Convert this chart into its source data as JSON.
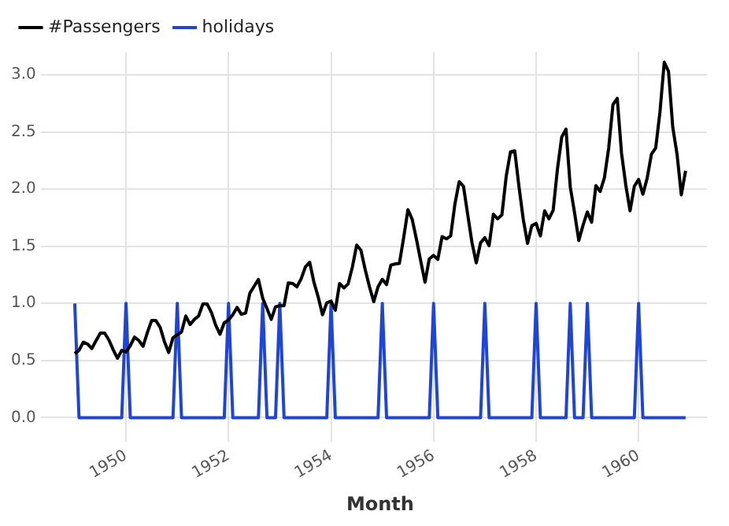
{
  "chart_data": {
    "type": "line",
    "xlabel": "Month",
    "x": [
      "1949-01",
      "1949-02",
      "1949-03",
      "1949-04",
      "1949-05",
      "1949-06",
      "1949-07",
      "1949-08",
      "1949-09",
      "1949-10",
      "1949-11",
      "1949-12",
      "1950-01",
      "1950-02",
      "1950-03",
      "1950-04",
      "1950-05",
      "1950-06",
      "1950-07",
      "1950-08",
      "1950-09",
      "1950-10",
      "1950-11",
      "1950-12",
      "1951-01",
      "1951-02",
      "1951-03",
      "1951-04",
      "1951-05",
      "1951-06",
      "1951-07",
      "1951-08",
      "1951-09",
      "1951-10",
      "1951-11",
      "1951-12",
      "1952-01",
      "1952-02",
      "1952-03",
      "1952-04",
      "1952-05",
      "1952-06",
      "1952-07",
      "1952-08",
      "1952-09",
      "1952-10",
      "1952-11",
      "1952-12",
      "1953-01",
      "1953-02",
      "1953-03",
      "1953-04",
      "1953-05",
      "1953-06",
      "1953-07",
      "1953-08",
      "1953-09",
      "1953-10",
      "1953-11",
      "1953-12",
      "1954-01",
      "1954-02",
      "1954-03",
      "1954-04",
      "1954-05",
      "1954-06",
      "1954-07",
      "1954-08",
      "1954-09",
      "1954-10",
      "1954-11",
      "1954-12",
      "1955-01",
      "1955-02",
      "1955-03",
      "1955-04",
      "1955-05",
      "1955-06",
      "1955-07",
      "1955-08",
      "1955-09",
      "1955-10",
      "1955-11",
      "1955-12",
      "1956-01",
      "1956-02",
      "1956-03",
      "1956-04",
      "1956-05",
      "1956-06",
      "1956-07",
      "1956-08",
      "1956-09",
      "1956-10",
      "1956-11",
      "1956-12",
      "1957-01",
      "1957-02",
      "1957-03",
      "1957-04",
      "1957-05",
      "1957-06",
      "1957-07",
      "1957-08",
      "1957-09",
      "1957-10",
      "1957-11",
      "1957-12",
      "1958-01",
      "1958-02",
      "1958-03",
      "1958-04",
      "1958-05",
      "1958-06",
      "1958-07",
      "1958-08",
      "1958-09",
      "1958-10",
      "1958-11",
      "1958-12",
      "1959-01",
      "1959-02",
      "1959-03",
      "1959-04",
      "1959-05",
      "1959-06",
      "1959-07",
      "1959-08",
      "1959-09",
      "1959-10",
      "1959-11",
      "1959-12",
      "1960-01",
      "1960-02",
      "1960-03",
      "1960-04",
      "1960-05",
      "1960-06",
      "1960-07",
      "1960-08",
      "1960-09",
      "1960-10",
      "1960-11",
      "1960-12"
    ],
    "series": [
      {
        "name": "#Passengers",
        "color": "#000000",
        "values": [
          0.56,
          0.59,
          0.66,
          0.645,
          0.605,
          0.675,
          0.74,
          0.74,
          0.68,
          0.595,
          0.52,
          0.59,
          0.575,
          0.63,
          0.705,
          0.675,
          0.625,
          0.745,
          0.85,
          0.85,
          0.79,
          0.665,
          0.57,
          0.7,
          0.725,
          0.75,
          0.89,
          0.815,
          0.86,
          0.89,
          0.995,
          0.995,
          0.92,
          0.81,
          0.73,
          0.83,
          0.855,
          0.9,
          0.965,
          0.905,
          0.915,
          1.09,
          1.15,
          1.21,
          1.045,
          0.955,
          0.86,
          0.97,
          0.98,
          0.98,
          1.18,
          1.175,
          1.145,
          1.215,
          1.32,
          1.36,
          1.185,
          1.055,
          0.9,
          1.005,
          1.02,
          0.94,
          1.175,
          1.135,
          1.17,
          1.32,
          1.51,
          1.465,
          1.295,
          1.145,
          1.015,
          1.145,
          1.21,
          1.165,
          1.335,
          1.345,
          1.35,
          1.575,
          1.82,
          1.735,
          1.56,
          1.37,
          1.185,
          1.39,
          1.42,
          1.385,
          1.585,
          1.565,
          1.59,
          1.87,
          2.065,
          2.025,
          1.775,
          1.53,
          1.355,
          1.53,
          1.575,
          1.505,
          1.78,
          1.74,
          1.775,
          2.11,
          2.325,
          2.335,
          2.02,
          1.735,
          1.525,
          1.68,
          1.7,
          1.59,
          1.81,
          1.74,
          1.815,
          2.175,
          2.455,
          2.525,
          2.02,
          1.795,
          1.55,
          1.685,
          1.8,
          1.71,
          2.03,
          1.98,
          2.1,
          2.36,
          2.74,
          2.795,
          2.315,
          2.035,
          1.81,
          2.025,
          2.085,
          1.955,
          2.095,
          2.305,
          2.36,
          2.675,
          3.11,
          3.03,
          2.54,
          2.305,
          1.95,
          2.16
        ]
      },
      {
        "name": "holidays",
        "color": "#1f45d8",
        "values": [
          1,
          0,
          0,
          0,
          0,
          0,
          0,
          0,
          0,
          0,
          0,
          0,
          1,
          0,
          0,
          0,
          0,
          0,
          0,
          0,
          0,
          0,
          0,
          0,
          1,
          0,
          0,
          0,
          0,
          0,
          0,
          0,
          0,
          0,
          0,
          0,
          1,
          0,
          0,
          0,
          0,
          0,
          0,
          0,
          1,
          0,
          0,
          0,
          1,
          0,
          0,
          0,
          0,
          0,
          0,
          0,
          0,
          0,
          0,
          0,
          1,
          0,
          0,
          0,
          0,
          0,
          0,
          0,
          0,
          0,
          0,
          0,
          1,
          0,
          0,
          0,
          0,
          0,
          0,
          0,
          0,
          0,
          0,
          0,
          1,
          0,
          0,
          0,
          0,
          0,
          0,
          0,
          0,
          0,
          0,
          0,
          1,
          0,
          0,
          0,
          0,
          0,
          0,
          0,
          0,
          0,
          0,
          0,
          1,
          0,
          0,
          0,
          0,
          0,
          0,
          0,
          1,
          0,
          0,
          0,
          1,
          0,
          0,
          0,
          0,
          0,
          0,
          0,
          0,
          0,
          0,
          0,
          1,
          0,
          0,
          0,
          0,
          0,
          0,
          0,
          0,
          0,
          0,
          0
        ]
      }
    ],
    "xlim": [
      "1948-08",
      "1961-05"
    ],
    "xticks": [
      "1950",
      "1952",
      "1954",
      "1956",
      "1958",
      "1960"
    ],
    "ylim": [
      -0.1,
      3.2
    ],
    "yticks": [
      {
        "value": 0,
        "label": "0.0"
      },
      0.5,
      {
        "value": 1,
        "label": "1.0"
      },
      1.5,
      {
        "value": 2,
        "label": "2.0"
      },
      2.5,
      {
        "value": 3,
        "label": "3.0"
      }
    ],
    "grid": true,
    "legend": "top left"
  }
}
